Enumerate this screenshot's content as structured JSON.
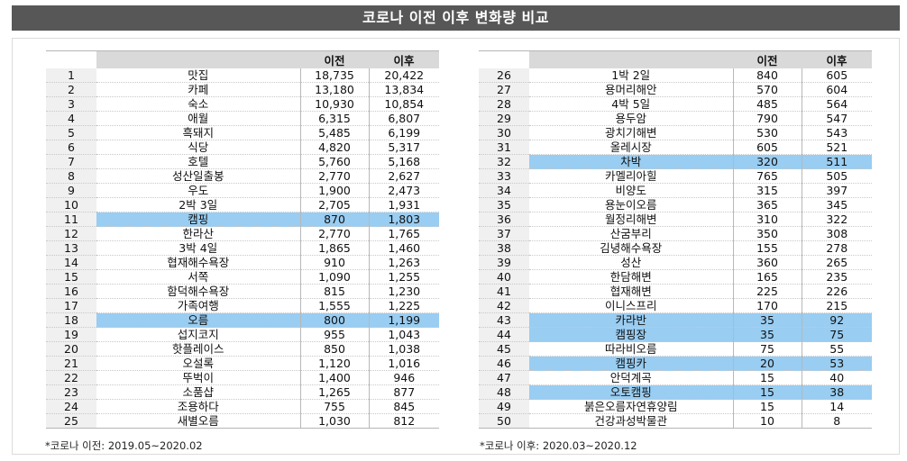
{
  "title": "코로나 이전 이후 변화량 비교",
  "columns": {
    "rank": "",
    "keyword": "",
    "before": "이전",
    "after": "이후"
  },
  "highlight_color": "#99cdf2",
  "header_bg": "#575757",
  "left_table": [
    {
      "rank": "1",
      "keyword": "맛집",
      "before": "18,735",
      "after": "20,422",
      "hl": false
    },
    {
      "rank": "2",
      "keyword": "카페",
      "before": "13,180",
      "after": "13,834",
      "hl": false
    },
    {
      "rank": "3",
      "keyword": "숙소",
      "before": "10,930",
      "after": "10,854",
      "hl": false
    },
    {
      "rank": "4",
      "keyword": "애월",
      "before": "6,315",
      "after": "6,807",
      "hl": false
    },
    {
      "rank": "5",
      "keyword": "흑돼지",
      "before": "5,485",
      "after": "6,199",
      "hl": false
    },
    {
      "rank": "6",
      "keyword": "식당",
      "before": "4,820",
      "after": "5,317",
      "hl": false
    },
    {
      "rank": "7",
      "keyword": "호텔",
      "before": "5,760",
      "after": "5,168",
      "hl": false
    },
    {
      "rank": "8",
      "keyword": "성산일출봉",
      "before": "2,770",
      "after": "2,627",
      "hl": false
    },
    {
      "rank": "9",
      "keyword": "우도",
      "before": "1,900",
      "after": "2,473",
      "hl": false
    },
    {
      "rank": "10",
      "keyword": "2박 3일",
      "before": "2,705",
      "after": "1,931",
      "hl": false
    },
    {
      "rank": "11",
      "keyword": "캠핑",
      "before": "870",
      "after": "1,803",
      "hl": true
    },
    {
      "rank": "12",
      "keyword": "한라산",
      "before": "2,770",
      "after": "1,765",
      "hl": false
    },
    {
      "rank": "13",
      "keyword": "3박 4일",
      "before": "1,865",
      "after": "1,460",
      "hl": false
    },
    {
      "rank": "14",
      "keyword": "협재해수욕장",
      "before": "910",
      "after": "1,263",
      "hl": false
    },
    {
      "rank": "15",
      "keyword": "서쪽",
      "before": "1,090",
      "after": "1,255",
      "hl": false
    },
    {
      "rank": "16",
      "keyword": "함덕해수욕장",
      "before": "815",
      "after": "1,230",
      "hl": false
    },
    {
      "rank": "17",
      "keyword": "가족여행",
      "before": "1,555",
      "after": "1,225",
      "hl": false
    },
    {
      "rank": "18",
      "keyword": "오름",
      "before": "800",
      "after": "1,199",
      "hl": true
    },
    {
      "rank": "19",
      "keyword": "섭지코지",
      "before": "955",
      "after": "1,043",
      "hl": false
    },
    {
      "rank": "20",
      "keyword": "핫플레이스",
      "before": "850",
      "after": "1,038",
      "hl": false
    },
    {
      "rank": "21",
      "keyword": "오설록",
      "before": "1,120",
      "after": "1,016",
      "hl": false
    },
    {
      "rank": "22",
      "keyword": "뚜벅이",
      "before": "1,400",
      "after": "946",
      "hl": false
    },
    {
      "rank": "23",
      "keyword": "소품샵",
      "before": "1,265",
      "after": "877",
      "hl": false
    },
    {
      "rank": "24",
      "keyword": "조용하다",
      "before": "755",
      "after": "845",
      "hl": false
    },
    {
      "rank": "25",
      "keyword": "새별오름",
      "before": "1,030",
      "after": "812",
      "hl": false
    }
  ],
  "right_table": [
    {
      "rank": "26",
      "keyword": "1박 2일",
      "before": "840",
      "after": "605",
      "hl": false
    },
    {
      "rank": "27",
      "keyword": "용머리해안",
      "before": "570",
      "after": "604",
      "hl": false
    },
    {
      "rank": "28",
      "keyword": "4박 5일",
      "before": "485",
      "after": "564",
      "hl": false
    },
    {
      "rank": "29",
      "keyword": "용두암",
      "before": "790",
      "after": "547",
      "hl": false
    },
    {
      "rank": "30",
      "keyword": "광치기해변",
      "before": "530",
      "after": "543",
      "hl": false
    },
    {
      "rank": "31",
      "keyword": "올레시장",
      "before": "605",
      "after": "521",
      "hl": false
    },
    {
      "rank": "32",
      "keyword": "차박",
      "before": "320",
      "after": "511",
      "hl": true
    },
    {
      "rank": "33",
      "keyword": "카멜리아힐",
      "before": "765",
      "after": "505",
      "hl": false
    },
    {
      "rank": "34",
      "keyword": "비양도",
      "before": "315",
      "after": "397",
      "hl": false
    },
    {
      "rank": "35",
      "keyword": "용눈이오름",
      "before": "365",
      "after": "345",
      "hl": false
    },
    {
      "rank": "36",
      "keyword": "월정리해변",
      "before": "310",
      "after": "322",
      "hl": false
    },
    {
      "rank": "37",
      "keyword": "산굼부리",
      "before": "350",
      "after": "308",
      "hl": false
    },
    {
      "rank": "38",
      "keyword": "김녕해수욕장",
      "before": "155",
      "after": "278",
      "hl": false
    },
    {
      "rank": "39",
      "keyword": "성산",
      "before": "360",
      "after": "265",
      "hl": false
    },
    {
      "rank": "40",
      "keyword": "한담해변",
      "before": "165",
      "after": "235",
      "hl": false
    },
    {
      "rank": "41",
      "keyword": "협재해변",
      "before": "225",
      "after": "226",
      "hl": false
    },
    {
      "rank": "42",
      "keyword": "이니스프리",
      "before": "170",
      "after": "215",
      "hl": false
    },
    {
      "rank": "43",
      "keyword": "카라반",
      "before": "35",
      "after": "92",
      "hl": true
    },
    {
      "rank": "44",
      "keyword": "캠핑장",
      "before": "35",
      "after": "75",
      "hl": true
    },
    {
      "rank": "45",
      "keyword": "따라비오름",
      "before": "75",
      "after": "55",
      "hl": false
    },
    {
      "rank": "46",
      "keyword": "캠핑카",
      "before": "20",
      "after": "53",
      "hl": true
    },
    {
      "rank": "47",
      "keyword": "안덕계곡",
      "before": "15",
      "after": "40",
      "hl": false
    },
    {
      "rank": "48",
      "keyword": "오토캠핑",
      "before": "15",
      "after": "38",
      "hl": true
    },
    {
      "rank": "49",
      "keyword": "붉은오름자연휴양림",
      "before": "15",
      "after": "14",
      "hl": false
    },
    {
      "rank": "50",
      "keyword": "건강과성박물관",
      "before": "10",
      "after": "8",
      "hl": false
    }
  ],
  "notes": {
    "left": "*코로나 이전: 2019.05~2020.02",
    "right": "*코로나 이후: 2020.03~2020.12"
  }
}
